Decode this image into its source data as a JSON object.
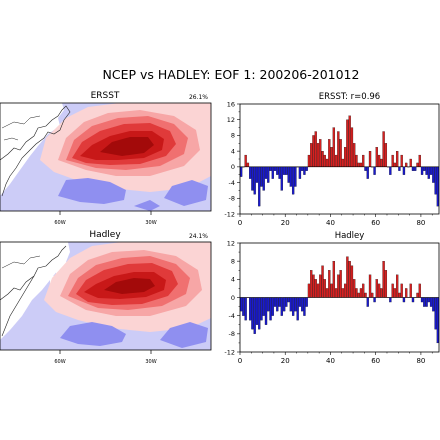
{
  "figure": {
    "title": "NCEP vs HADLEY:  EOF 1:  200206-201012"
  },
  "colors": {
    "positive": "#d62020",
    "negative": "#1a1acc",
    "map_red_levels": [
      "#fbd4d4",
      "#f7a6a6",
      "#f07070",
      "#e03a3a",
      "#c81818",
      "#a30a0a"
    ],
    "map_blue_levels": [
      "#ccccf7",
      "#8f8ff0"
    ]
  },
  "chart_data": [
    {
      "type": "heatmap",
      "panel": "map-top",
      "title_center": "ERSST",
      "title_right": "26.1%",
      "x_ticks": [
        "60W",
        "30W"
      ]
    },
    {
      "type": "bar",
      "panel": "series-top",
      "title": "ERSST:  r=0.96",
      "ylim": [
        -12,
        16
      ],
      "xlim": [
        0,
        88
      ],
      "y_ticks": [
        -12,
        -8,
        -4,
        0,
        4,
        8,
        12,
        16
      ],
      "x_ticks": [
        0,
        20,
        40,
        60,
        80
      ],
      "values": [
        -2.5,
        0,
        3,
        1,
        -3,
        -6,
        -7,
        -4,
        -10,
        -5,
        -6,
        -3,
        -4,
        -1,
        -3,
        -1,
        -2,
        -3,
        -6,
        -2,
        -2,
        -4,
        -5,
        -7,
        -5,
        0,
        -3,
        -1,
        -2,
        -1,
        3,
        6,
        8,
        9,
        6,
        7,
        4,
        3,
        2,
        7,
        5,
        10,
        3,
        9,
        7,
        2,
        5,
        12,
        13,
        10,
        6,
        3,
        1,
        1,
        3,
        -1,
        -3,
        4,
        0,
        -2,
        5,
        3,
        2,
        9,
        6,
        0,
        -2,
        3,
        1,
        4,
        -1,
        3,
        -2,
        1,
        0,
        2,
        -1,
        -1,
        1,
        3,
        -2,
        -1,
        -2,
        -3,
        -2,
        -4,
        -7,
        -10
      ]
    },
    {
      "type": "heatmap",
      "panel": "map-bottom",
      "title_center": "Hadley",
      "title_right": "24.1%",
      "x_ticks": [
        "60W",
        "30W"
      ]
    },
    {
      "type": "bar",
      "panel": "series-bottom",
      "title": "Hadley",
      "ylim": [
        -12,
        12
      ],
      "xlim": [
        0,
        88
      ],
      "y_ticks": [
        -12,
        -8,
        -4,
        0,
        4,
        8,
        12
      ],
      "x_ticks": [
        0,
        20,
        40,
        60,
        80
      ],
      "values": [
        -3,
        -4,
        -5,
        0,
        -5,
        -7,
        -8,
        -6,
        -7,
        -5,
        -4,
        -6,
        -3,
        -5,
        -4,
        -2,
        -3,
        -2,
        -4,
        -3,
        -2,
        -1,
        -3,
        -4,
        -3,
        -5,
        -2,
        -3,
        -4,
        -2,
        3,
        6,
        5,
        4,
        3,
        5,
        7,
        4,
        2,
        6,
        3,
        8,
        2,
        5,
        6,
        2,
        3,
        9,
        8,
        7,
        4,
        2,
        1,
        2,
        3,
        1,
        -2,
        5,
        1,
        -1,
        4,
        3,
        2,
        8,
        6,
        0,
        -1,
        3,
        2,
        5,
        1,
        3,
        -1,
        2,
        0,
        3,
        -1,
        0,
        1,
        3,
        -1,
        -2,
        -2,
        -1,
        -2,
        -3,
        -7,
        -10
      ]
    }
  ]
}
